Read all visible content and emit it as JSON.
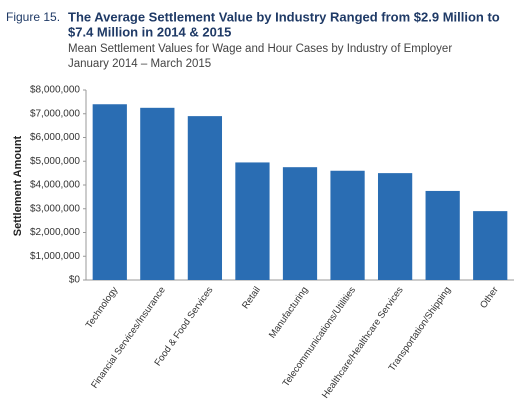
{
  "chart_data": {
    "type": "bar",
    "figure_label": "Figure 15.",
    "title": [
      "The Average Settlement Value by Industry Ranged from $2.9 Million to",
      "$7.4 Million in 2014 & 2015"
    ],
    "subtitle": [
      "Mean Settlement Values for Wage and Hour Cases by Industry of Employer",
      "January 2014 – March 2015"
    ],
    "y_label": "Settlement Amount",
    "categories": [
      "Technology",
      "Financial Services/Insurance",
      "Food & Food Services",
      "Retail",
      "Manufacturing",
      "Telecommunications/Utilities",
      "Healthcare/Healthcare Services",
      "Transportation/Shipping",
      "Other"
    ],
    "values": [
      7400000,
      7250000,
      6900000,
      4950000,
      4750000,
      4600000,
      4500000,
      3750000,
      2900000
    ],
    "color": "#2a6db3",
    "ylim": [
      0,
      8000000
    ],
    "yticks": [
      {
        "value": 0,
        "label": "$0"
      },
      {
        "value": 1000000,
        "label": "$1,000,000"
      },
      {
        "value": 2000000,
        "label": "$2,000,000"
      },
      {
        "value": 3000000,
        "label": "$3,000,000"
      },
      {
        "value": 4000000,
        "label": "$4,000,000"
      },
      {
        "value": 5000000,
        "label": "$5,000,000"
      },
      {
        "value": 6000000,
        "label": "$6,000,000"
      },
      {
        "value": 7000000,
        "label": "$7,000,000"
      },
      {
        "value": 8000000,
        "label": "$8,000,000"
      }
    ],
    "grid": false
  }
}
